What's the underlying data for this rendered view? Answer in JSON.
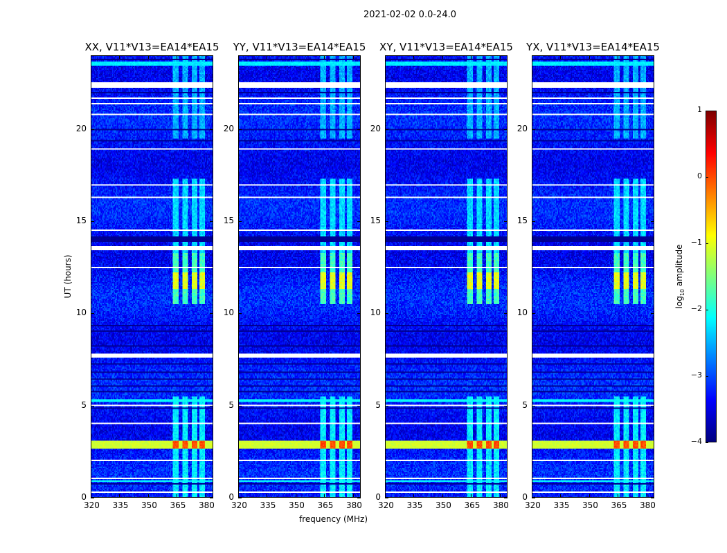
{
  "chart_data": {
    "type": "heatmap",
    "title": "2021-02-02 0.0-24.0",
    "xlabel": "frequency (MHz)",
    "ylabel": "UT (hours)",
    "xlim": [
      320,
      384
    ],
    "ylim": [
      0,
      24
    ],
    "xticks": [
      "320",
      "335",
      "350",
      "365",
      "380"
    ],
    "xtick_values": [
      320,
      335,
      350,
      365,
      380
    ],
    "yticks": [
      "0",
      "5",
      "10",
      "15",
      "20"
    ],
    "ytick_values": [
      0,
      5,
      10,
      15,
      20
    ],
    "panels": [
      {
        "title": "XX, V11*V13=EA14*EA15"
      },
      {
        "title": "YY, V11*V13=EA14*EA15"
      },
      {
        "title": "XY, V11*V13=EA14*EA15"
      },
      {
        "title": "YX, V11*V13=EA14*EA15"
      }
    ],
    "colorbar": {
      "label": "log10 amplitude",
      "label_main": "log",
      "label_sub": "10",
      "label_rest": " amplitude",
      "colormap": "jet",
      "range": [
        -4,
        1
      ],
      "ticks": [
        "1",
        "0",
        "−1",
        "−2",
        "−3",
        "−4"
      ],
      "tick_values": [
        1,
        0,
        -1,
        -2,
        -3,
        -4
      ]
    },
    "background_log_amplitude": -3.3,
    "rfi_channels_mhz": [
      [
        363,
        366
      ],
      [
        368,
        371
      ],
      [
        373,
        376
      ],
      [
        377,
        380
      ]
    ],
    "flagged_hours": [
      [
        0.22,
        0.28
      ],
      [
        0.98,
        1.03
      ],
      [
        1.48,
        1.53
      ],
      [
        1.98,
        2.03
      ],
      [
        3.98,
        4.03
      ],
      [
        4.48,
        4.53
      ],
      [
        4.98,
        5.04
      ],
      [
        5.38,
        5.43
      ],
      [
        7.55,
        7.8
      ],
      [
        9.58,
        9.63
      ],
      [
        12.48,
        12.53
      ],
      [
        13.45,
        13.65
      ],
      [
        14.48,
        14.53
      ],
      [
        14.98,
        15.03
      ],
      [
        15.58,
        15.63
      ],
      [
        16.28,
        16.33
      ],
      [
        16.98,
        17.03
      ],
      [
        17.38,
        17.43
      ],
      [
        17.68,
        17.73
      ],
      [
        17.98,
        18.03
      ],
      [
        18.28,
        18.33
      ],
      [
        18.58,
        18.63
      ],
      [
        18.88,
        18.95
      ],
      [
        20.78,
        20.83
      ],
      [
        21.38,
        21.43
      ],
      [
        21.68,
        21.73
      ],
      [
        22.25,
        22.55
      ],
      [
        23.08,
        23.13
      ]
    ],
    "low_hours": [
      [
        0.68,
        0.74
      ],
      [
        4.78,
        4.84
      ],
      [
        5.68,
        5.74
      ],
      [
        5.98,
        6.04
      ],
      [
        6.38,
        6.44
      ],
      [
        6.78,
        6.84
      ],
      [
        7.18,
        7.24
      ],
      [
        8.18,
        8.24
      ],
      [
        8.98,
        9.04
      ],
      [
        9.28,
        9.34
      ],
      [
        13.85,
        14.2
      ],
      [
        19.37,
        19.45
      ],
      [
        19.97,
        20.05
      ],
      [
        21.98,
        22.04
      ],
      [
        23.78,
        23.84
      ]
    ],
    "bright_hours": [
      {
        "range": [
          0.8,
          0.92
        ],
        "level": -2.1
      },
      {
        "range": [
          5.2,
          5.32
        ],
        "level": -2.1
      },
      {
        "range": [
          23.5,
          23.72
        ],
        "level": -2.2
      },
      {
        "range": [
          2.6,
          3.1
        ],
        "level": -1.1,
        "rfi_level": 0.0
      }
    ],
    "rfi_active_hours": [
      {
        "range": [
          0,
          5.5
        ],
        "level": -2.2
      },
      {
        "range": [
          10.5,
          13.3
        ],
        "level": -1.8,
        "peak": [
          11.3,
          12.2
        ],
        "peak_level": -1.0
      },
      {
        "range": [
          13.3,
          17.3
        ],
        "level": -2.3
      },
      {
        "range": [
          19.5,
          24
        ],
        "level": -2.5
      }
    ]
  }
}
